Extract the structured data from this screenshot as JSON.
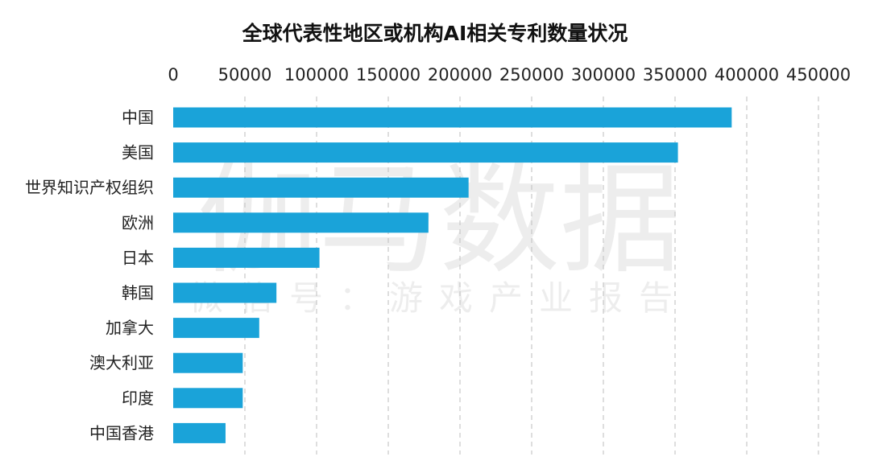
{
  "watermark": {
    "main": "伽马数据",
    "sub": "微信号：游戏产业报告"
  },
  "chart_data": {
    "type": "bar",
    "orientation": "horizontal",
    "title": "全球代表性地区或机构AI相关专利数量状况",
    "xlabel": "",
    "ylabel": "",
    "xlim": [
      0,
      450000
    ],
    "x_ticks": [
      0,
      50000,
      100000,
      150000,
      200000,
      250000,
      300000,
      350000,
      400000,
      450000
    ],
    "x_tick_labels": [
      "0",
      "50000",
      "100000",
      "150000",
      "200000",
      "250000",
      "300000",
      "350000",
      "400000",
      "450000"
    ],
    "x_axis_position": "top",
    "grid": true,
    "legend": "none",
    "bar_color": "#1aa3d9",
    "categories": [
      "中国",
      "美国",
      "世界知识产权组织",
      "欧洲",
      "日本",
      "韩国",
      "加拿大",
      "澳大利亚",
      "印度",
      "中国香港"
    ],
    "values": [
      389500,
      352000,
      206000,
      178000,
      102000,
      72000,
      60000,
      48500,
      48500,
      36500
    ]
  }
}
